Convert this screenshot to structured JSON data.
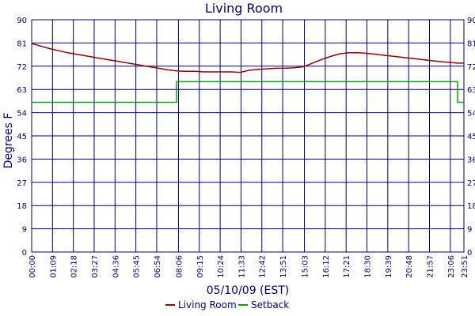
{
  "chart_data": {
    "type": "line",
    "title": "Living Room",
    "xlabel": "05/10/09 (EST)",
    "ylabel": "Degrees F",
    "ylim": [
      0,
      90
    ],
    "yticks": [
      0,
      9,
      18,
      27,
      36,
      45,
      54,
      63,
      72,
      81,
      90
    ],
    "xticks": [
      "00:00",
      "01:09",
      "02:18",
      "03:27",
      "04:36",
      "05:45",
      "06:54",
      "08:06",
      "09:15",
      "10:24",
      "11:33",
      "12:42",
      "13:51",
      "15:03",
      "16:12",
      "17:21",
      "18:30",
      "19:39",
      "20:48",
      "21:57",
      "23:06",
      "23:51"
    ],
    "grid": true,
    "legend_position": "bottom",
    "colors": {
      "axis": "#000080",
      "grid": "#000080",
      "living_room": "#990000",
      "setback": "#00aa00"
    },
    "series": [
      {
        "name": "Living Room",
        "color": "#990000",
        "x": [
          "00:00",
          "00:30",
          "01:00",
          "01:30",
          "02:00",
          "02:30",
          "03:00",
          "03:30",
          "04:00",
          "04:30",
          "05:00",
          "05:30",
          "06:00",
          "06:30",
          "07:00",
          "07:30",
          "08:00",
          "08:30",
          "09:00",
          "09:30",
          "10:00",
          "10:30",
          "11:00",
          "11:30",
          "12:00",
          "12:30",
          "13:00",
          "13:30",
          "14:00",
          "14:30",
          "15:00",
          "15:30",
          "16:00",
          "16:30",
          "17:00",
          "17:30",
          "18:00",
          "18:30",
          "19:00",
          "19:30",
          "20:00",
          "20:30",
          "21:00",
          "21:30",
          "22:00",
          "22:30",
          "23:00",
          "23:30",
          "23:51"
        ],
        "values": [
          80.8,
          79.8,
          78.8,
          78.0,
          77.2,
          76.6,
          76.0,
          75.4,
          74.8,
          74.2,
          73.6,
          73.0,
          72.4,
          71.8,
          71.2,
          70.6,
          70.2,
          70.0,
          70.0,
          69.8,
          69.8,
          69.8,
          69.8,
          69.6,
          70.4,
          70.8,
          71.0,
          71.2,
          71.2,
          71.4,
          71.8,
          73.2,
          74.6,
          75.8,
          76.8,
          77.2,
          77.2,
          77.0,
          76.6,
          76.2,
          75.8,
          75.4,
          75.0,
          74.6,
          74.2,
          73.8,
          73.5,
          73.2,
          73.2
        ]
      },
      {
        "name": "Setback",
        "color": "#00aa00",
        "x": [
          "00:00",
          "08:00",
          "08:00",
          "23:30",
          "23:30",
          "23:51"
        ],
        "values": [
          58,
          58,
          66,
          66,
          58,
          58
        ]
      }
    ]
  }
}
